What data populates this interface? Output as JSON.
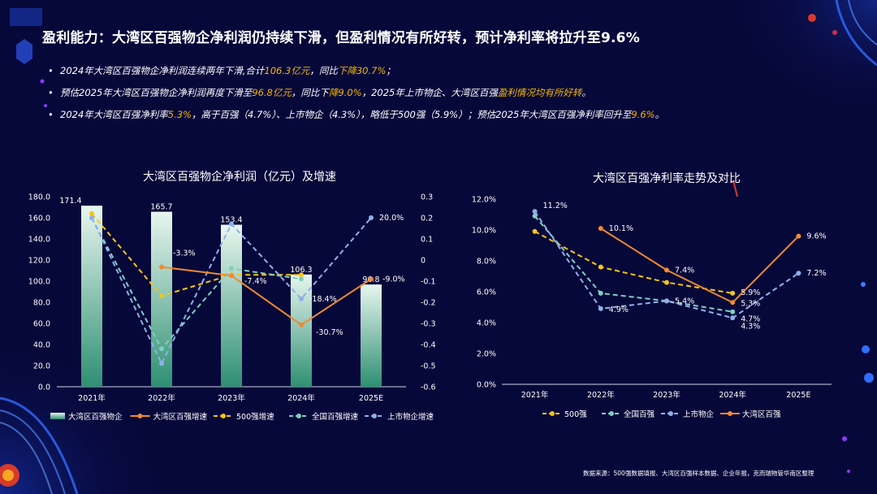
{
  "title": "盈利能力：大湾区百强物企净利润仍持续下滑，但盈利情况有所好转，预计净利率将拉升至9.6%",
  "bullets": [
    {
      "parts": [
        "2024年大湾区百强物企净利润连续两年下滑,合计",
        "106.3亿元",
        "，同比",
        "下降30.7%",
        "；"
      ]
    },
    {
      "parts": [
        "预估2025年大湾区百强物企净利润再度下滑至",
        "96.8亿元",
        "，同比下",
        "降9.0%",
        "，2025年上市物企、大湾区百强",
        "盈利情况均有所好转",
        "。"
      ]
    },
    {
      "parts": [
        "2024年大湾区百强净利率",
        "5.3%",
        "，高于百强（4.7%）、上市物企（4.3%），略低于500强（5.9%）；预估2025年大湾区百强净利率回升至",
        "9.6%",
        "。"
      ]
    }
  ],
  "source": "数据来源：500强数据填报、大湾区百强样本数据、企业年报，克而瑞物管华南区整理",
  "colors": {
    "bar_top": "#e8f6ef",
    "bar_bottom": "#2e8f73",
    "orange": "#f08a30",
    "yellow": "#f5c518",
    "teal": "#7ecfc0",
    "blue": "#8fb0e8",
    "axis": "#ffffff",
    "highlight": "#f5b800"
  },
  "chart_data": [
    {
      "type": "bar",
      "title": "大湾区百强物企净利润（亿元）及增速",
      "categories": [
        "2021年",
        "2022年",
        "2023年",
        "2024年",
        "2025E"
      ],
      "ylim": [
        0,
        180
      ],
      "yticks": [
        "0.0",
        "20.0",
        "40.0",
        "60.0",
        "80.0",
        "100.0",
        "120.0",
        "140.0",
        "160.0",
        "180.0"
      ],
      "y2lim": [
        -0.6,
        0.3
      ],
      "y2ticks": [
        "-0.6",
        "-0.5",
        "-0.4",
        "-0.3",
        "-0.2",
        "-0.1",
        "0",
        "0.1",
        "0.2",
        "0.3"
      ],
      "bars": {
        "name": "大湾区百强物企",
        "values": [
          171.4,
          165.7,
          153.4,
          106.3,
          96.8
        ],
        "labels": [
          "171.4",
          "165.7",
          "153.4",
          "106.3",
          "96.8"
        ]
      },
      "series": [
        {
          "name": "大湾区百强增速",
          "color_key": "orange",
          "dashed": false,
          "values": [
            null,
            -0.033,
            -0.074,
            -0.307,
            -0.09
          ],
          "labels": [
            "",
            "-3.3%",
            "-7.4%",
            "-30.7%",
            "-9.0%"
          ]
        },
        {
          "name": "500强增速",
          "color_key": "yellow",
          "dashed": true,
          "values": [
            0.22,
            -0.17,
            -0.07,
            -0.07,
            null
          ],
          "labels": [
            "",
            "",
            "",
            "",
            ""
          ]
        },
        {
          "name": "全国百强增速",
          "color_key": "teal",
          "dashed": true,
          "values": [
            0.2,
            -0.42,
            -0.04,
            -0.09,
            null
          ],
          "labels": [
            "",
            "",
            "",
            "",
            ""
          ]
        },
        {
          "name": "上市物企增速",
          "color_key": "blue",
          "dashed": true,
          "values": [
            0.2,
            -0.49,
            0.17,
            -0.184,
            0.2
          ],
          "labels": [
            "",
            "",
            "",
            "-18.4%",
            "20.0%"
          ]
        }
      ]
    },
    {
      "type": "line",
      "title": "大湾区百强净利率走势及对比",
      "categories": [
        "2021年",
        "2022年",
        "2023年",
        "2024年",
        "2025E"
      ],
      "ylim": [
        0,
        12
      ],
      "yticks": [
        "0.0%",
        "2.0%",
        "4.0%",
        "6.0%",
        "8.0%",
        "10.0%",
        "12.0%"
      ],
      "series": [
        {
          "name": "500强",
          "color_key": "yellow",
          "dashed": true,
          "values": [
            9.9,
            7.6,
            6.6,
            5.9,
            null
          ],
          "labels": [
            "",
            "",
            "",
            "5.9%",
            ""
          ]
        },
        {
          "name": "全国百强",
          "color_key": "teal",
          "dashed": true,
          "values": [
            10.9,
            5.9,
            5.4,
            4.7,
            null
          ],
          "labels": [
            "",
            "",
            "5.4%",
            "4.7%",
            ""
          ]
        },
        {
          "name": "上市物企",
          "color_key": "blue",
          "dashed": true,
          "values": [
            11.2,
            4.9,
            5.4,
            4.3,
            7.2
          ],
          "labels": [
            "11.2%",
            "4.9%",
            "",
            "4.3%",
            "7.2%"
          ]
        },
        {
          "name": "大湾区百强",
          "color_key": "orange",
          "dashed": false,
          "values": [
            null,
            10.1,
            7.4,
            5.3,
            9.6
          ],
          "labels": [
            "",
            "10.1%",
            "7.4%",
            "5.3%",
            "9.6%"
          ]
        }
      ]
    }
  ]
}
